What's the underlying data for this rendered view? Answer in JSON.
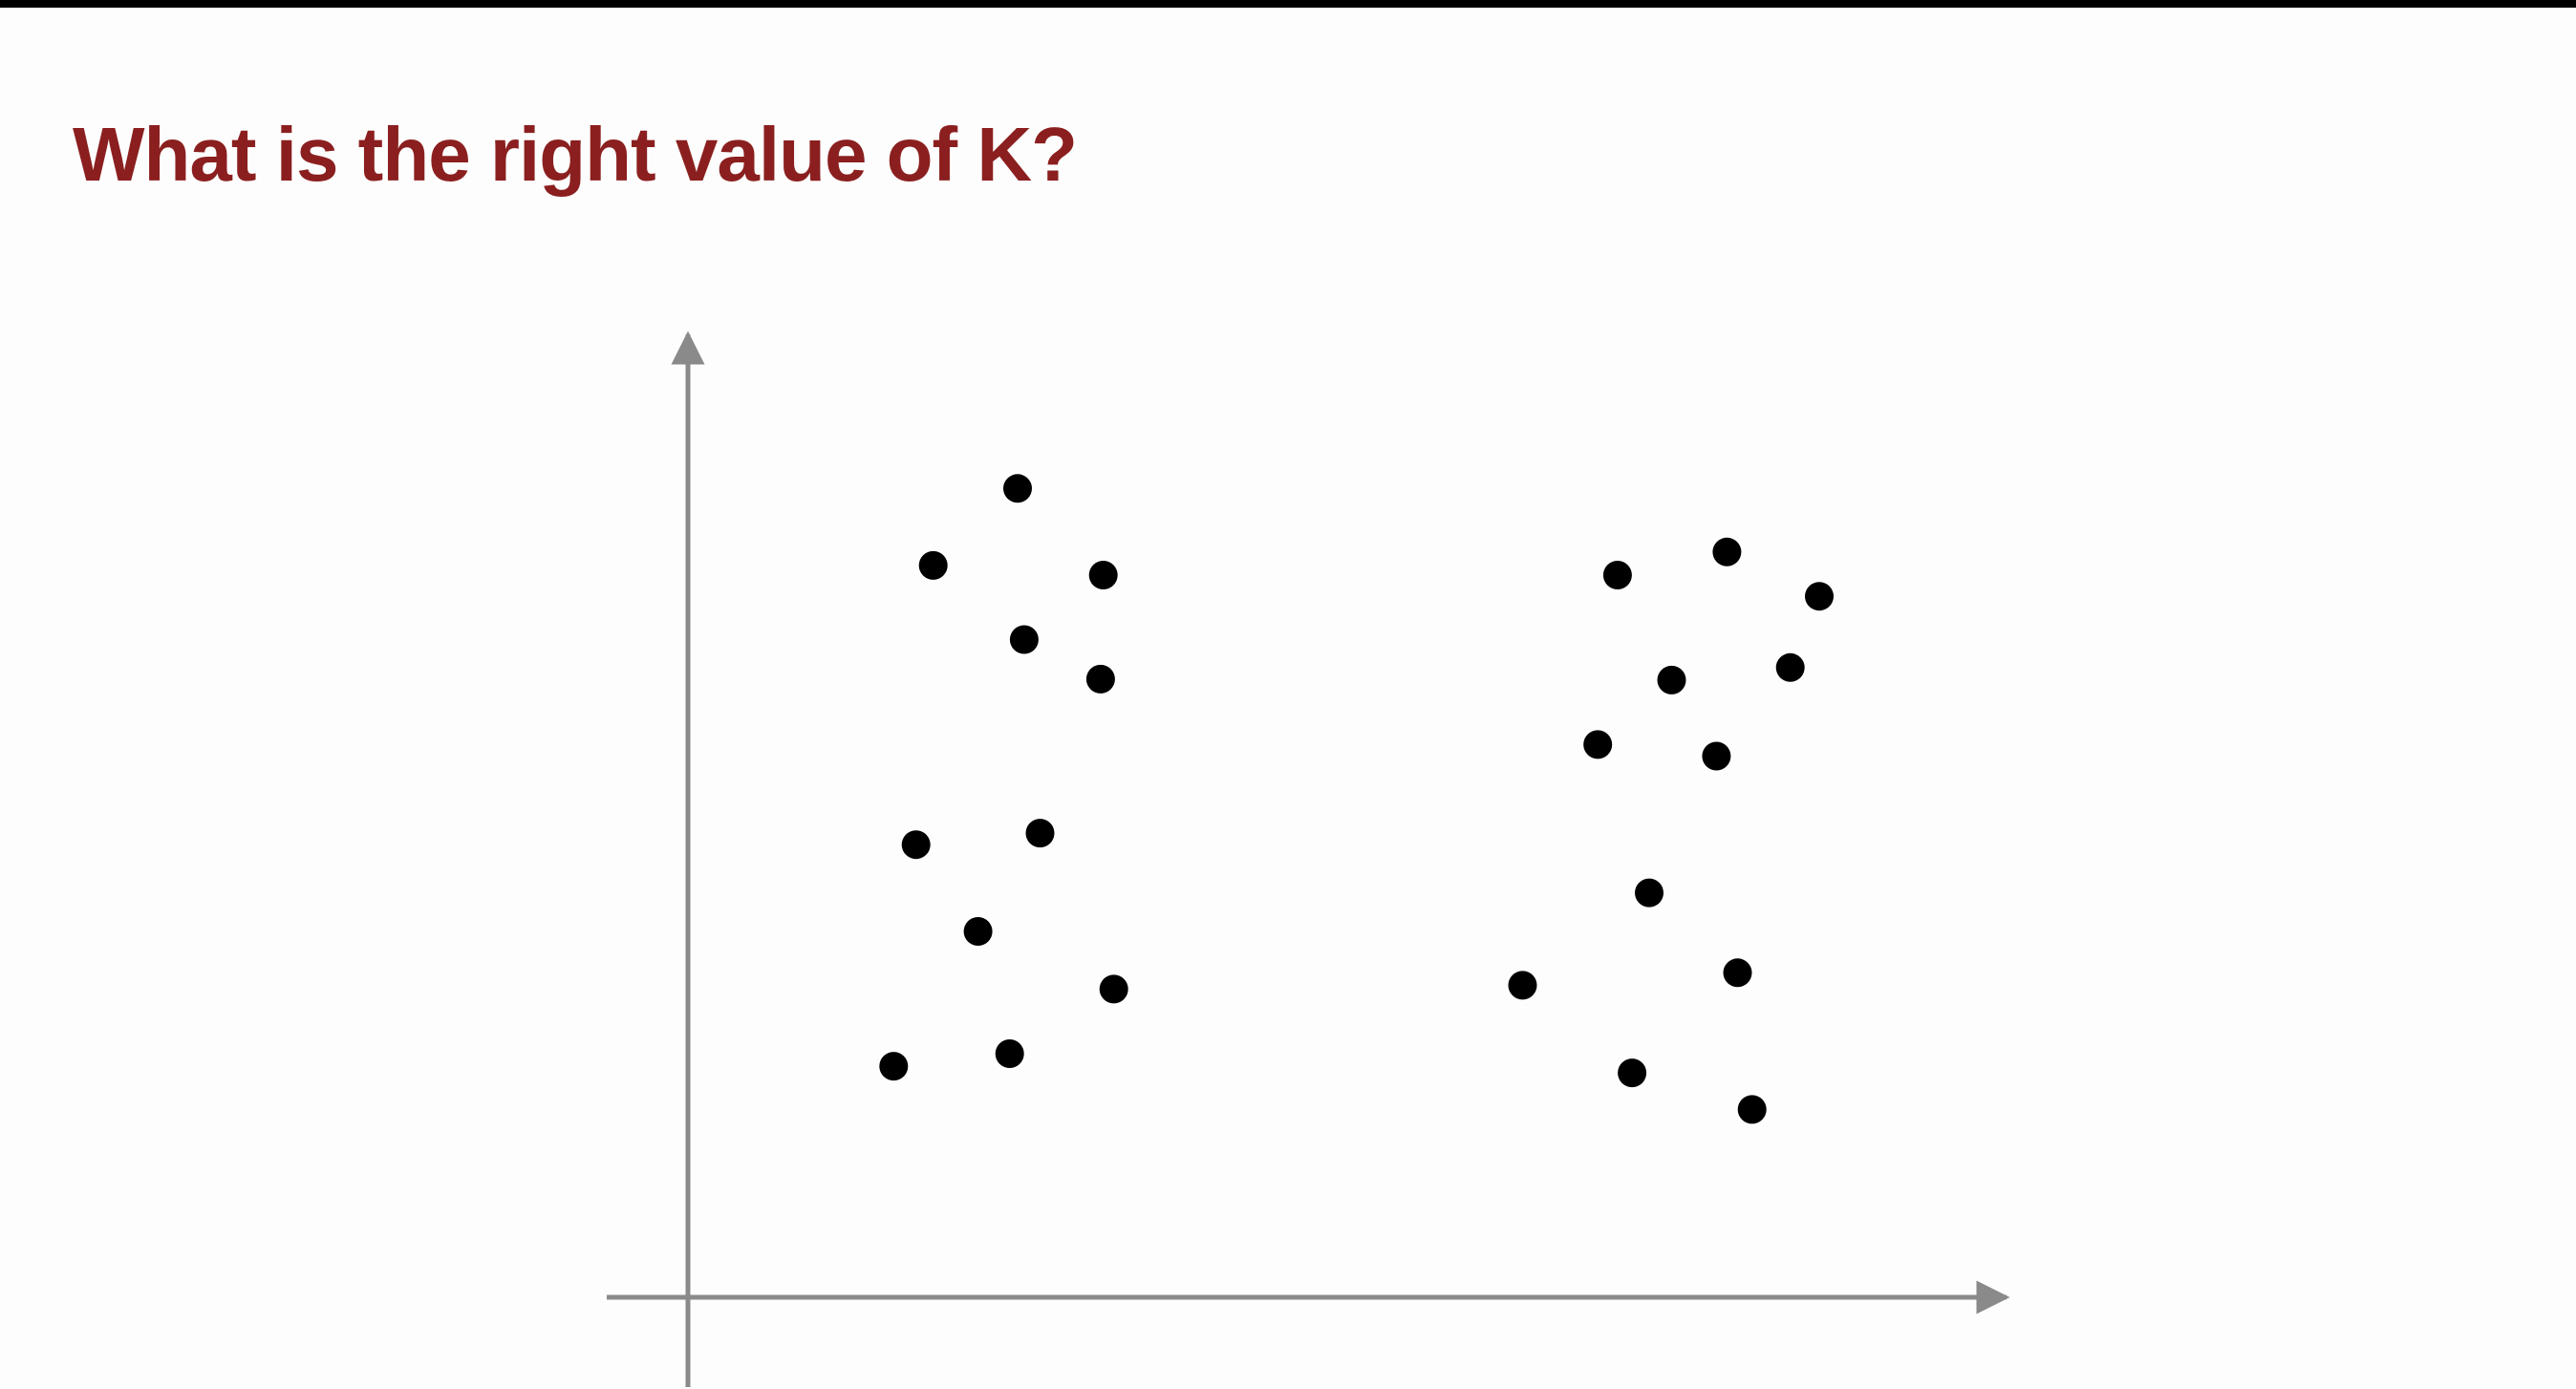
{
  "slide": {
    "title": "What is the right value of K?",
    "title_color": "#8b1f1f",
    "top_bar_color": "#000000"
  },
  "chart_data": {
    "type": "scatter",
    "title": "",
    "xlabel": "",
    "ylabel": "",
    "xlim": [
      0,
      100
    ],
    "ylim": [
      0,
      100
    ],
    "grid": false,
    "axis_color": "#8a8a8a",
    "point_color": "#000000",
    "series": [
      {
        "points": [
          [
            25,
            84
          ],
          [
            18.6,
            76
          ],
          [
            31.5,
            75
          ],
          [
            25.5,
            68.3
          ],
          [
            31.3,
            64.2
          ],
          [
            17.3,
            47
          ],
          [
            26.7,
            48.2
          ],
          [
            22,
            38
          ],
          [
            32.3,
            32
          ],
          [
            15.6,
            24
          ],
          [
            24.4,
            25.3
          ],
          [
            70.5,
            75
          ],
          [
            78.8,
            77.4
          ],
          [
            85.8,
            72.8
          ],
          [
            74.6,
            64.1
          ],
          [
            83.6,
            65.4
          ],
          [
            69,
            57.4
          ],
          [
            78,
            56.2
          ],
          [
            72.9,
            42
          ],
          [
            79.6,
            33.7
          ],
          [
            63.3,
            32.4
          ],
          [
            71.6,
            23.3
          ],
          [
            80.7,
            19.5
          ]
        ]
      }
    ]
  }
}
